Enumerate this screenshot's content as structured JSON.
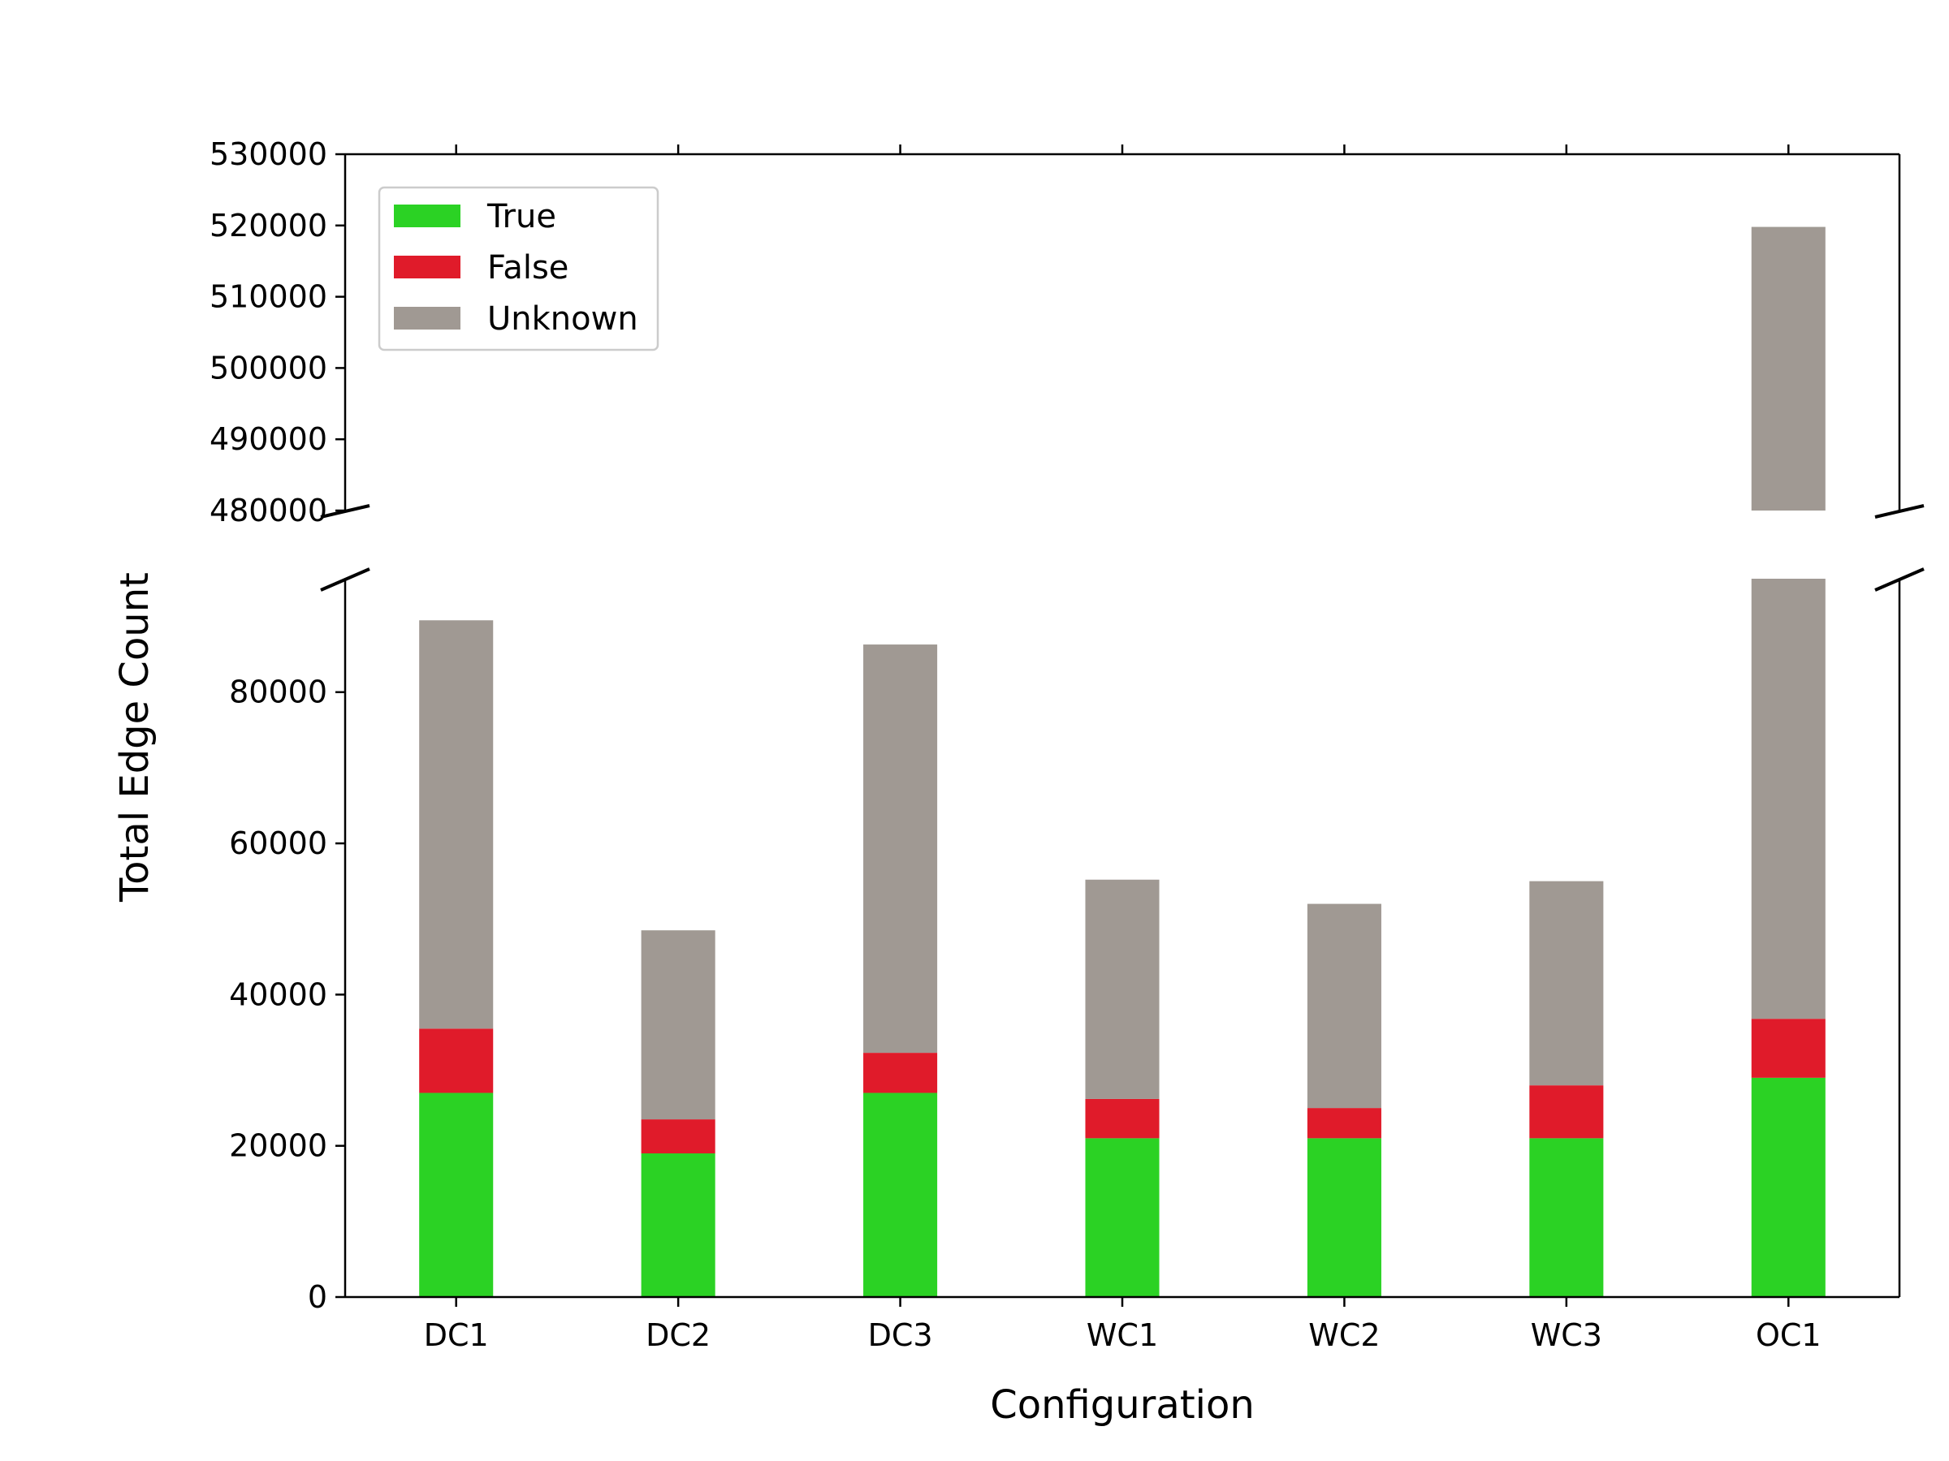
{
  "chart_data": {
    "type": "bar",
    "stacked": true,
    "broken_y_axis": true,
    "xlabel": "Configuration",
    "ylabel": "Total Edge Count",
    "categories": [
      "DC1",
      "DC2",
      "DC3",
      "WC1",
      "WC2",
      "WC3",
      "OC1"
    ],
    "series": [
      {
        "name": "True",
        "color": "#2bd224",
        "values": [
          27000,
          19000,
          27000,
          21000,
          21000,
          21000,
          29000
        ]
      },
      {
        "name": "False",
        "color": "#e01b2a",
        "values": [
          8500,
          4500,
          5300,
          5200,
          4000,
          7000,
          7800
        ]
      },
      {
        "name": "Unknown",
        "color": "#a09993",
        "values": [
          54000,
          25000,
          54000,
          29000,
          27000,
          27000,
          483000
        ]
      }
    ],
    "lower_ylim": [
      0,
      95000
    ],
    "upper_ylim": [
      480000,
      530000
    ],
    "lower_yticks": [
      0,
      20000,
      40000,
      60000,
      80000
    ],
    "upper_yticks": [
      480000,
      490000,
      500000,
      510000,
      520000,
      530000
    ],
    "legend": {
      "position": "top-left",
      "entries": [
        "True",
        "False",
        "Unknown"
      ]
    },
    "grid": false
  }
}
